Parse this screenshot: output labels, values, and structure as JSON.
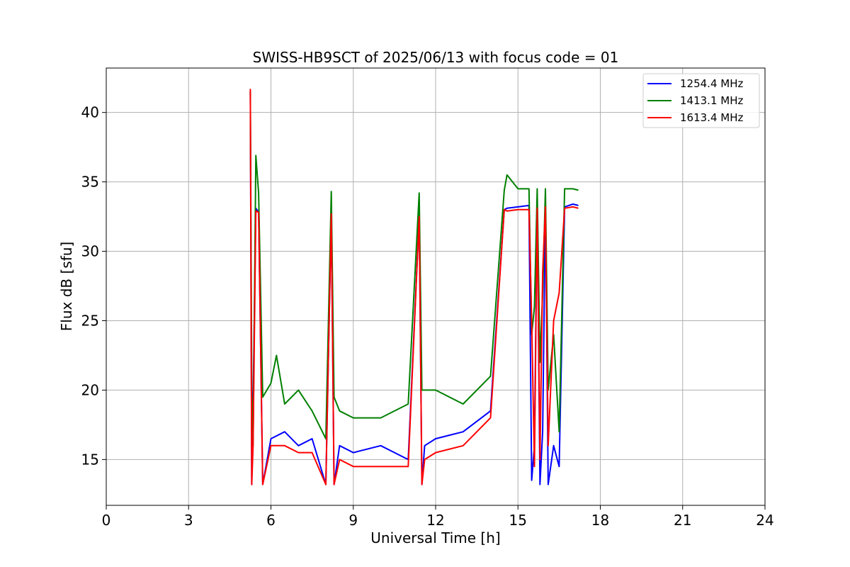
{
  "chart_data": {
    "type": "line",
    "title": "SWISS-HB9SCT of 2025/06/13 with focus code = 01",
    "xlabel": "Universal Time [h]",
    "ylabel": "Flux dB [sfu]",
    "xlim": [
      0,
      24
    ],
    "ylim": [
      11.7,
      43.2
    ],
    "xticks": [
      0,
      3,
      6,
      9,
      12,
      15,
      18,
      21,
      24
    ],
    "yticks": [
      15,
      20,
      25,
      30,
      35,
      40
    ],
    "grid": true,
    "legend_position": "top-right",
    "series": [
      {
        "name": "1254.4 MHz",
        "color": "#0000ff",
        "x": [
          5.25,
          5.3,
          5.35,
          5.45,
          5.55,
          5.7,
          6.0,
          6.5,
          7.0,
          7.5,
          8.0,
          8.2,
          8.3,
          8.5,
          9.0,
          10.0,
          11.0,
          11.4,
          11.5,
          11.6,
          12.0,
          13.0,
          14.0,
          14.5,
          14.6,
          15.0,
          15.4,
          15.5,
          15.6,
          15.7,
          15.8,
          15.9,
          16.0,
          16.1,
          16.3,
          16.5,
          16.7,
          17.0,
          17.2
        ],
        "y": [
          41.5,
          13.2,
          19.0,
          33.1,
          32.8,
          13.2,
          16.5,
          17.0,
          16.0,
          16.5,
          13.2,
          32.6,
          13.2,
          16.0,
          15.5,
          16.0,
          15.0,
          32.5,
          13.2,
          16.0,
          16.5,
          17.0,
          18.5,
          33.0,
          33.1,
          33.2,
          33.3,
          13.5,
          16.0,
          33.4,
          13.2,
          17.0,
          33.3,
          13.2,
          16.0,
          14.5,
          33.2,
          33.4,
          33.3
        ]
      },
      {
        "name": "1413.1 MHz",
        "color": "#008000",
        "x": [
          5.25,
          5.3,
          5.35,
          5.45,
          5.55,
          5.7,
          6.0,
          6.2,
          6.5,
          7.0,
          7.5,
          8.0,
          8.2,
          8.3,
          8.5,
          9.0,
          10.0,
          11.0,
          11.4,
          11.5,
          11.6,
          12.0,
          13.0,
          14.0,
          14.5,
          14.6,
          15.0,
          15.4,
          15.5,
          15.6,
          15.7,
          15.8,
          15.9,
          16.0,
          16.1,
          16.3,
          16.5,
          16.7,
          17.0,
          17.2
        ],
        "y": [
          41.5,
          20.0,
          16.0,
          36.9,
          34.2,
          19.5,
          20.5,
          22.5,
          19.0,
          20.0,
          18.5,
          16.5,
          34.3,
          19.5,
          18.5,
          18.0,
          18.0,
          19.0,
          34.2,
          20.0,
          20.0,
          20.0,
          19.0,
          21.0,
          34.4,
          35.5,
          34.5,
          34.5,
          24.0,
          26.0,
          34.5,
          22.0,
          27.0,
          34.5,
          20.0,
          24.0,
          17.0,
          34.5,
          34.5,
          34.4
        ]
      },
      {
        "name": "1613.4 MHz",
        "color": "#ff0000",
        "x": [
          5.25,
          5.3,
          5.35,
          5.45,
          5.55,
          5.7,
          6.0,
          6.5,
          7.0,
          7.5,
          8.0,
          8.2,
          8.3,
          8.5,
          9.0,
          10.0,
          11.0,
          11.4,
          11.5,
          11.6,
          12.0,
          13.0,
          14.0,
          14.5,
          14.6,
          15.0,
          15.4,
          15.5,
          15.6,
          15.7,
          15.8,
          15.9,
          16.0,
          16.1,
          16.3,
          16.5,
          16.7,
          17.0,
          17.2
        ],
        "y": [
          41.7,
          13.2,
          16.0,
          32.9,
          32.8,
          13.2,
          16.0,
          16.0,
          15.5,
          15.5,
          13.2,
          32.7,
          13.2,
          15.0,
          14.5,
          14.5,
          14.5,
          32.5,
          13.2,
          15.0,
          15.5,
          16.0,
          18.0,
          33.0,
          32.9,
          33.0,
          33.0,
          25.0,
          14.5,
          33.1,
          15.0,
          28.5,
          33.2,
          16.0,
          25.0,
          27.0,
          33.1,
          33.2,
          33.1
        ]
      }
    ]
  }
}
